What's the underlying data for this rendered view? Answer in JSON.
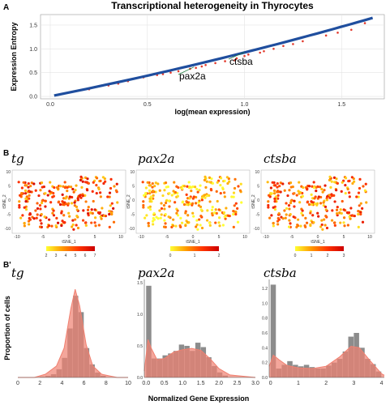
{
  "panels": {
    "A": "A",
    "B": "B",
    "B2": "B'"
  },
  "chart_data": [
    {
      "type": "scatter",
      "title": "Transcriptional heterogeneity in Thyrocytes",
      "xlabel": "log(mean expression)",
      "ylabel": "Expression Entropy",
      "xlim": [
        -0.05,
        1.72
      ],
      "ylim": [
        -0.05,
        1.72
      ],
      "xticks": [
        "0.0",
        "0.5",
        "1.0",
        "1.5"
      ],
      "yticks": [
        "0.0",
        "0.5",
        "1.0",
        "1.5"
      ],
      "grid": true,
      "fit_line": {
        "x": [
          0.02,
          1.66
        ],
        "y": [
          0.02,
          1.65
        ],
        "color": "#1f4e9e"
      },
      "outlier_color": "#e23b2e",
      "outliers": [
        [
          0.62,
          0.5
        ],
        [
          0.66,
          0.53
        ],
        [
          0.72,
          0.58
        ],
        [
          0.78,
          0.63
        ],
        [
          0.85,
          0.7
        ],
        [
          0.9,
          0.74
        ],
        [
          0.96,
          0.8
        ],
        [
          1.02,
          0.88
        ],
        [
          0.55,
          0.45
        ],
        [
          0.48,
          0.4
        ],
        [
          0.4,
          0.32
        ],
        [
          0.3,
          0.23
        ],
        [
          1.1,
          0.95
        ],
        [
          1.2,
          1.06
        ],
        [
          1.3,
          1.16
        ],
        [
          1.42,
          1.28
        ],
        [
          1.55,
          1.4
        ],
        [
          1.62,
          1.54
        ],
        [
          0.7,
          0.62
        ],
        [
          0.8,
          0.66
        ],
        [
          0.95,
          0.76
        ],
        [
          1.0,
          0.85
        ],
        [
          1.08,
          0.92
        ],
        [
          1.25,
          1.1
        ],
        [
          1.48,
          1.34
        ],
        [
          0.2,
          0.15
        ],
        [
          0.35,
          0.27
        ],
        [
          0.58,
          0.47
        ],
        [
          0.75,
          0.6
        ],
        [
          1.15,
          1.0
        ]
      ],
      "annotations": [
        {
          "label": "ctsba",
          "x": 1.0,
          "y": 0.93
        },
        {
          "label": "pax2a",
          "x": 0.74,
          "y": 0.62
        }
      ]
    },
    {
      "type": "scatter",
      "genes": [
        "tg",
        "pax2a",
        "ctsba"
      ],
      "xlabel": "tSNE_1",
      "ylabel": "tSNE_2",
      "xticks": [
        "-10",
        "-5",
        "0",
        "5",
        "10"
      ],
      "yticks": [
        "-10",
        "-5",
        "0",
        "5",
        "10"
      ],
      "colorbars": [
        {
          "labels": [
            "2",
            "3",
            "4",
            "5",
            "6",
            "7"
          ],
          "range": [
            2,
            7
          ]
        },
        {
          "labels": [
            "0",
            "1",
            "2"
          ],
          "range": [
            0,
            2
          ]
        },
        {
          "labels": [
            "0",
            "1",
            "2",
            "3"
          ],
          "range": [
            0,
            3
          ]
        }
      ],
      "colorscale": [
        "#ffff33",
        "#ff9900",
        "#ff3300",
        "#cc0000"
      ]
    },
    {
      "type": "bar",
      "ylabel": "Proportion of cells",
      "xlabel": "Normalized Gene Expression",
      "hist_color": "#8c8c8c",
      "density_color": "#f08070",
      "panels": [
        {
          "gene": "tg",
          "xlim": [
            0,
            10
          ],
          "xticks": [
            "0",
            "2",
            "4",
            "6",
            "8",
            "10"
          ],
          "ylim": [
            0,
            0.6
          ],
          "yticks": [],
          "bins": [
            [
              2,
              0.005
            ],
            [
              2.5,
              0.01
            ],
            [
              3,
              0.02
            ],
            [
              3.5,
              0.05
            ],
            [
              4,
              0.12
            ],
            [
              4.5,
              0.3
            ],
            [
              5,
              0.5
            ],
            [
              5.5,
              0.4
            ],
            [
              6,
              0.18
            ],
            [
              6.5,
              0.08
            ],
            [
              7,
              0.03
            ],
            [
              7.5,
              0.01
            ]
          ],
          "bin_width": 0.5,
          "density": [
            [
              0,
              0
            ],
            [
              1.5,
              0
            ],
            [
              2.5,
              0.02
            ],
            [
              3.5,
              0.07
            ],
            [
              4.2,
              0.18
            ],
            [
              4.8,
              0.42
            ],
            [
              5.2,
              0.54
            ],
            [
              5.6,
              0.44
            ],
            [
              6.2,
              0.2
            ],
            [
              6.8,
              0.07
            ],
            [
              7.6,
              0.02
            ],
            [
              9,
              0
            ],
            [
              10,
              0
            ]
          ]
        },
        {
          "gene": "pax2a",
          "xlim": [
            -0.05,
            3.0
          ],
          "xticks": [
            "0.0",
            "0.5",
            "1.0",
            "1.5",
            "2.0",
            "2.5",
            "3.0"
          ],
          "ylim": [
            0,
            1.55
          ],
          "yticks": [
            "0.0",
            "0.5",
            "1.0",
            "1.5"
          ],
          "bins": [
            [
              0,
              1.45
            ],
            [
              0.15,
              0.3
            ],
            [
              0.3,
              0.3
            ],
            [
              0.45,
              0.35
            ],
            [
              0.6,
              0.38
            ],
            [
              0.75,
              0.42
            ],
            [
              0.9,
              0.52
            ],
            [
              1.05,
              0.5
            ],
            [
              1.2,
              0.42
            ],
            [
              1.35,
              0.55
            ],
            [
              1.5,
              0.48
            ],
            [
              1.65,
              0.32
            ],
            [
              1.8,
              0.18
            ],
            [
              1.95,
              0.08
            ],
            [
              2.1,
              0.03
            ]
          ],
          "bin_width": 0.15,
          "density": [
            [
              -0.05,
              0.1
            ],
            [
              0.05,
              0.6
            ],
            [
              0.15,
              0.45
            ],
            [
              0.3,
              0.28
            ],
            [
              0.5,
              0.3
            ],
            [
              0.75,
              0.4
            ],
            [
              1.0,
              0.44
            ],
            [
              1.25,
              0.46
            ],
            [
              1.5,
              0.43
            ],
            [
              1.75,
              0.3
            ],
            [
              2.0,
              0.14
            ],
            [
              2.3,
              0.04
            ],
            [
              3.0,
              0
            ]
          ]
        },
        {
          "gene": "ctsba",
          "xlim": [
            -0.05,
            4.1
          ],
          "xticks": [
            "0",
            "1",
            "2",
            "3",
            "4"
          ],
          "ylim": [
            0,
            1.32
          ],
          "yticks": [
            "0.0",
            "0.2",
            "0.4",
            "0.6",
            "0.8",
            "1.0",
            "1.2"
          ],
          "bins": [
            [
              0,
              1.25
            ],
            [
              0.2,
              0.12
            ],
            [
              0.4,
              0.17
            ],
            [
              0.6,
              0.22
            ],
            [
              0.8,
              0.17
            ],
            [
              1.0,
              0.15
            ],
            [
              1.2,
              0.17
            ],
            [
              1.4,
              0.14
            ],
            [
              1.6,
              0.12
            ],
            [
              1.8,
              0.12
            ],
            [
              2.0,
              0.16
            ],
            [
              2.2,
              0.2
            ],
            [
              2.4,
              0.25
            ],
            [
              2.6,
              0.35
            ],
            [
              2.8,
              0.55
            ],
            [
              3.0,
              0.6
            ],
            [
              3.2,
              0.4
            ],
            [
              3.4,
              0.25
            ],
            [
              3.6,
              0.18
            ],
            [
              3.8,
              0.08
            ]
          ],
          "bin_width": 0.2,
          "density": [
            [
              -0.05,
              0.15
            ],
            [
              0.1,
              0.3
            ],
            [
              0.3,
              0.24
            ],
            [
              0.6,
              0.16
            ],
            [
              1.0,
              0.13
            ],
            [
              1.5,
              0.12
            ],
            [
              2.0,
              0.15
            ],
            [
              2.5,
              0.28
            ],
            [
              2.9,
              0.42
            ],
            [
              3.2,
              0.4
            ],
            [
              3.6,
              0.22
            ],
            [
              4.0,
              0.05
            ],
            [
              4.1,
              0.03
            ]
          ]
        }
      ]
    }
  ]
}
